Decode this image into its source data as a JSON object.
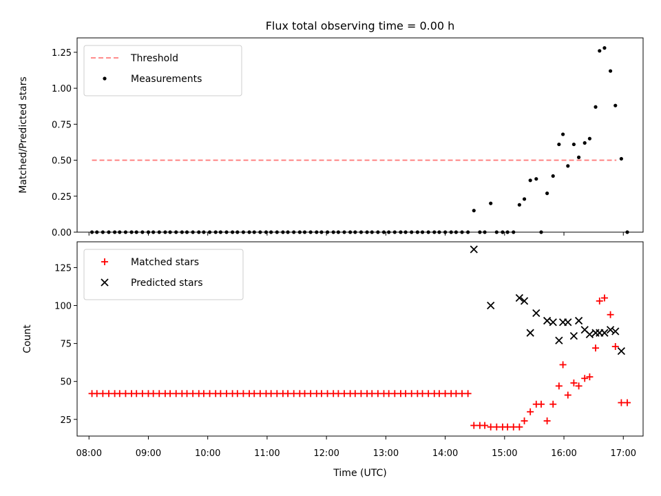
{
  "chart_data": [
    {
      "type": "scatter",
      "title": "Flux total observing time = 0.00 h",
      "xlabel": "",
      "ylabel": "Matched/Predicted stars",
      "xlim": [
        "07:48",
        "17:20"
      ],
      "ylim": [
        0.0,
        1.35
      ],
      "yticks": [
        0.0,
        0.25,
        0.5,
        0.75,
        1.0,
        1.25
      ],
      "ytick_labels": [
        "0.00",
        "0.25",
        "0.50",
        "0.75",
        "1.00",
        "1.25"
      ],
      "legend_position": "top-left",
      "grid": false,
      "series": [
        {
          "name": "Threshold",
          "kind": "line",
          "style": "dashed",
          "color": "#ff7b7b",
          "points": [
            [
              "08:03",
              0.5
            ],
            [
              "16:53",
              0.5
            ]
          ]
        },
        {
          "name": "Measurements",
          "kind": "scatter",
          "marker": "dot",
          "color": "#000000",
          "points": [
            [
              "08:03",
              0
            ],
            [
              "08:08",
              0
            ],
            [
              "08:14",
              0
            ],
            [
              "08:20",
              0
            ],
            [
              "08:26",
              0
            ],
            [
              "08:31",
              0
            ],
            [
              "08:37",
              0
            ],
            [
              "08:43",
              0
            ],
            [
              "08:48",
              0
            ],
            [
              "08:54",
              0
            ],
            [
              "09:00",
              0
            ],
            [
              "09:05",
              0
            ],
            [
              "09:11",
              0
            ],
            [
              "09:17",
              0
            ],
            [
              "09:22",
              0
            ],
            [
              "09:28",
              0
            ],
            [
              "09:34",
              0
            ],
            [
              "09:39",
              0
            ],
            [
              "09:45",
              0
            ],
            [
              "09:51",
              0
            ],
            [
              "09:56",
              0
            ],
            [
              "10:02",
              0
            ],
            [
              "10:08",
              0
            ],
            [
              "10:13",
              0
            ],
            [
              "10:19",
              0
            ],
            [
              "10:25",
              0
            ],
            [
              "10:30",
              0
            ],
            [
              "10:36",
              0
            ],
            [
              "10:42",
              0
            ],
            [
              "10:47",
              0
            ],
            [
              "10:53",
              0
            ],
            [
              "10:59",
              0
            ],
            [
              "11:04",
              0
            ],
            [
              "11:10",
              0
            ],
            [
              "11:16",
              0
            ],
            [
              "11:21",
              0
            ],
            [
              "11:27",
              0
            ],
            [
              "11:33",
              0
            ],
            [
              "11:38",
              0
            ],
            [
              "11:44",
              0
            ],
            [
              "11:50",
              0
            ],
            [
              "11:55",
              0
            ],
            [
              "12:01",
              0
            ],
            [
              "12:07",
              0
            ],
            [
              "12:12",
              0
            ],
            [
              "12:18",
              0
            ],
            [
              "12:24",
              0
            ],
            [
              "12:29",
              0
            ],
            [
              "12:35",
              0
            ],
            [
              "12:41",
              0
            ],
            [
              "12:46",
              0
            ],
            [
              "12:52",
              0
            ],
            [
              "12:58",
              0
            ],
            [
              "13:03",
              0
            ],
            [
              "13:09",
              0
            ],
            [
              "13:15",
              0
            ],
            [
              "13:20",
              0
            ],
            [
              "13:26",
              0
            ],
            [
              "13:32",
              0
            ],
            [
              "13:37",
              0
            ],
            [
              "13:43",
              0
            ],
            [
              "13:49",
              0
            ],
            [
              "13:54",
              0
            ],
            [
              "14:00",
              0
            ],
            [
              "14:06",
              0
            ],
            [
              "14:11",
              0
            ],
            [
              "14:17",
              0
            ],
            [
              "14:23",
              0
            ],
            [
              "14:29",
              0.15
            ],
            [
              "14:35",
              0
            ],
            [
              "14:40",
              0
            ],
            [
              "14:46",
              0.2
            ],
            [
              "14:52",
              0
            ],
            [
              "14:58",
              0
            ],
            [
              "15:03",
              0
            ],
            [
              "15:09",
              0
            ],
            [
              "15:15",
              0.19
            ],
            [
              "15:20",
              0.23
            ],
            [
              "15:26",
              0.36
            ],
            [
              "15:32",
              0.37
            ],
            [
              "15:37",
              0
            ],
            [
              "15:43",
              0.27
            ],
            [
              "15:49",
              0.39
            ],
            [
              "15:55",
              0.61
            ],
            [
              "15:59",
              0.68
            ],
            [
              "16:04",
              0.46
            ],
            [
              "16:10",
              0.61
            ],
            [
              "16:15",
              0.52
            ],
            [
              "16:21",
              0.62
            ],
            [
              "16:26",
              0.65
            ],
            [
              "16:32",
              0.87
            ],
            [
              "16:36",
              1.26
            ],
            [
              "16:41",
              1.28
            ],
            [
              "16:47",
              1.12
            ],
            [
              "16:52",
              0.88
            ],
            [
              "16:58",
              0.51
            ],
            [
              "17:04",
              0
            ]
          ]
        }
      ]
    },
    {
      "type": "scatter",
      "title": "",
      "xlabel": "Time (UTC)",
      "ylabel": "Count",
      "xlim": [
        "07:48",
        "17:20"
      ],
      "ylim": [
        14,
        142
      ],
      "yticks": [
        25,
        50,
        75,
        100,
        125
      ],
      "ytick_labels": [
        "25",
        "50",
        "75",
        "100",
        "125"
      ],
      "xticks": [
        "08:00",
        "09:00",
        "10:00",
        "11:00",
        "12:00",
        "13:00",
        "14:00",
        "15:00",
        "16:00",
        "17:00"
      ],
      "xtick_labels": [
        "08:00",
        "09:00",
        "10:00",
        "11:00",
        "12:00",
        "13:00",
        "14:00",
        "15:00",
        "16:00",
        "17:00"
      ],
      "legend_position": "top-left",
      "grid": false,
      "series": [
        {
          "name": "Matched stars",
          "kind": "scatter",
          "marker": "plus",
          "color": "#ff0000",
          "points": [
            [
              "08:03",
              42
            ],
            [
              "08:08",
              42
            ],
            [
              "08:14",
              42
            ],
            [
              "08:20",
              42
            ],
            [
              "08:26",
              42
            ],
            [
              "08:31",
              42
            ],
            [
              "08:37",
              42
            ],
            [
              "08:43",
              42
            ],
            [
              "08:48",
              42
            ],
            [
              "08:54",
              42
            ],
            [
              "09:00",
              42
            ],
            [
              "09:05",
              42
            ],
            [
              "09:11",
              42
            ],
            [
              "09:17",
              42
            ],
            [
              "09:22",
              42
            ],
            [
              "09:28",
              42
            ],
            [
              "09:34",
              42
            ],
            [
              "09:39",
              42
            ],
            [
              "09:45",
              42
            ],
            [
              "09:51",
              42
            ],
            [
              "09:56",
              42
            ],
            [
              "10:02",
              42
            ],
            [
              "10:08",
              42
            ],
            [
              "10:13",
              42
            ],
            [
              "10:19",
              42
            ],
            [
              "10:25",
              42
            ],
            [
              "10:30",
              42
            ],
            [
              "10:36",
              42
            ],
            [
              "10:42",
              42
            ],
            [
              "10:47",
              42
            ],
            [
              "10:53",
              42
            ],
            [
              "10:59",
              42
            ],
            [
              "11:04",
              42
            ],
            [
              "11:10",
              42
            ],
            [
              "11:16",
              42
            ],
            [
              "11:21",
              42
            ],
            [
              "11:27",
              42
            ],
            [
              "11:33",
              42
            ],
            [
              "11:38",
              42
            ],
            [
              "11:44",
              42
            ],
            [
              "11:50",
              42
            ],
            [
              "11:55",
              42
            ],
            [
              "12:01",
              42
            ],
            [
              "12:07",
              42
            ],
            [
              "12:12",
              42
            ],
            [
              "12:18",
              42
            ],
            [
              "12:24",
              42
            ],
            [
              "12:29",
              42
            ],
            [
              "12:35",
              42
            ],
            [
              "12:41",
              42
            ],
            [
              "12:46",
              42
            ],
            [
              "12:52",
              42
            ],
            [
              "12:58",
              42
            ],
            [
              "13:03",
              42
            ],
            [
              "13:09",
              42
            ],
            [
              "13:15",
              42
            ],
            [
              "13:20",
              42
            ],
            [
              "13:26",
              42
            ],
            [
              "13:32",
              42
            ],
            [
              "13:37",
              42
            ],
            [
              "13:43",
              42
            ],
            [
              "13:49",
              42
            ],
            [
              "13:54",
              42
            ],
            [
              "14:00",
              42
            ],
            [
              "14:06",
              42
            ],
            [
              "14:11",
              42
            ],
            [
              "14:17",
              42
            ],
            [
              "14:23",
              42
            ],
            [
              "14:29",
              21
            ],
            [
              "14:35",
              21
            ],
            [
              "14:40",
              21
            ],
            [
              "14:46",
              20
            ],
            [
              "14:52",
              20
            ],
            [
              "14:58",
              20
            ],
            [
              "15:03",
              20
            ],
            [
              "15:09",
              20
            ],
            [
              "15:15",
              20
            ],
            [
              "15:20",
              24
            ],
            [
              "15:26",
              30
            ],
            [
              "15:32",
              35
            ],
            [
              "15:37",
              35
            ],
            [
              "15:43",
              24
            ],
            [
              "15:49",
              35
            ],
            [
              "15:55",
              47
            ],
            [
              "15:59",
              61
            ],
            [
              "16:04",
              41
            ],
            [
              "16:10",
              49
            ],
            [
              "16:15",
              47
            ],
            [
              "16:21",
              52
            ],
            [
              "16:26",
              53
            ],
            [
              "16:32",
              72
            ],
            [
              "16:36",
              103
            ],
            [
              "16:41",
              105
            ],
            [
              "16:47",
              94
            ],
            [
              "16:52",
              73
            ],
            [
              "16:58",
              36
            ],
            [
              "17:04",
              36
            ]
          ]
        },
        {
          "name": "Predicted stars",
          "kind": "scatter",
          "marker": "x",
          "color": "#000000",
          "points": [
            [
              "14:29",
              137
            ],
            [
              "14:46",
              100
            ],
            [
              "15:15",
              105
            ],
            [
              "15:20",
              103
            ],
            [
              "15:26",
              82
            ],
            [
              "15:32",
              95
            ],
            [
              "15:43",
              90
            ],
            [
              "15:49",
              89
            ],
            [
              "15:55",
              77
            ],
            [
              "15:59",
              89
            ],
            [
              "16:04",
              89
            ],
            [
              "16:10",
              80
            ],
            [
              "16:15",
              90
            ],
            [
              "16:21",
              84
            ],
            [
              "16:26",
              81
            ],
            [
              "16:32",
              82
            ],
            [
              "16:36",
              82
            ],
            [
              "16:41",
              82
            ],
            [
              "16:47",
              84
            ],
            [
              "16:52",
              83
            ],
            [
              "16:58",
              70
            ]
          ]
        }
      ]
    }
  ]
}
